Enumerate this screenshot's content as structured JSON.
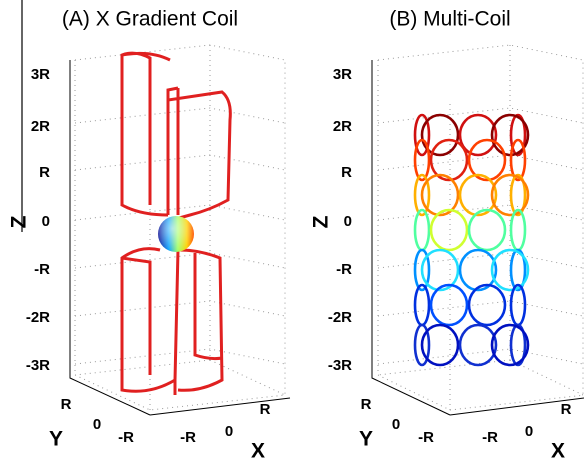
{
  "panels": [
    {
      "title": "(A) X Gradient Coil",
      "z_label": "Z",
      "y_label": "Y",
      "x_label": "X",
      "z_ticks": [
        "3R",
        "2R",
        "R",
        "0",
        "-R",
        "-2R",
        "-3R"
      ],
      "y_ticks": [
        "R",
        "0",
        "-R"
      ],
      "x_ticks": [
        "-R",
        "0",
        "R"
      ]
    },
    {
      "title": "(B) Multi-Coil",
      "z_label": "Z",
      "y_label": "Y",
      "x_label": "X",
      "z_ticks": [
        "3R",
        "2R",
        "R",
        "0",
        "-R",
        "-2R",
        "-3R"
      ],
      "y_ticks": [
        "R",
        "0",
        "-R"
      ],
      "x_ticks": [
        "-R",
        "0",
        "R"
      ]
    }
  ]
}
